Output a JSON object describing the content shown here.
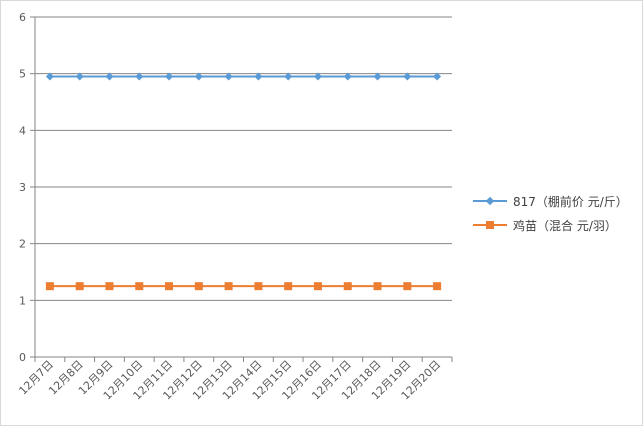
{
  "chart_data": {
    "type": "line",
    "categories": [
      "12月7日",
      "12月8日",
      "12月9日",
      "12月10日",
      "12月11日",
      "12月12日",
      "12月13日",
      "12月14日",
      "12月15日",
      "12月16日",
      "12月17日",
      "12月18日",
      "12月19日",
      "12月20日"
    ],
    "series": [
      {
        "name": "817（棚前价 元/斤）",
        "values": [
          4.95,
          4.95,
          4.95,
          4.95,
          4.95,
          4.95,
          4.95,
          4.95,
          4.95,
          4.95,
          4.95,
          4.95,
          4.95,
          4.95
        ],
        "color": "#5b9bd5",
        "marker": "diamond"
      },
      {
        "name": "鸡苗（混合 元/羽）",
        "values": [
          1.25,
          1.25,
          1.25,
          1.25,
          1.25,
          1.25,
          1.25,
          1.25,
          1.25,
          1.25,
          1.25,
          1.25,
          1.25,
          1.25
        ],
        "color": "#ed7d31",
        "marker": "square"
      }
    ],
    "yticks": [
      "0",
      "1",
      "2",
      "3",
      "4",
      "5",
      "6"
    ],
    "ylim": [
      0,
      6
    ],
    "grid": true,
    "legend_position": "right"
  }
}
